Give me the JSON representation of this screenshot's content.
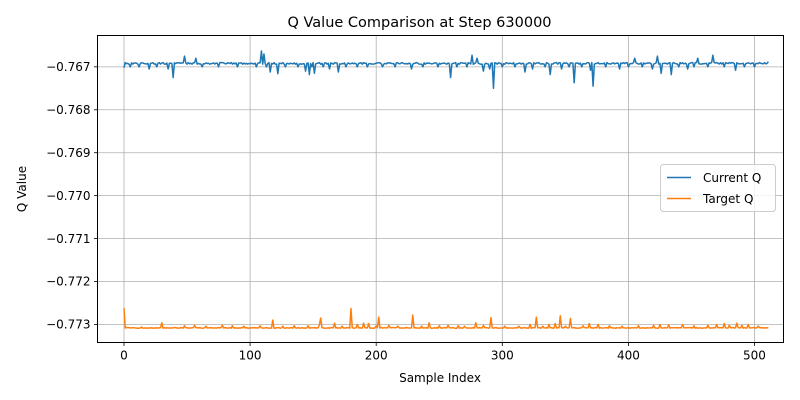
{
  "chart_data": {
    "type": "line",
    "title": "Q Value Comparison at Step 630000",
    "xlabel": "Sample Index",
    "ylabel": "Q Value",
    "xlim": [
      -21,
      523
    ],
    "ylim": [
      -0.77342,
      -0.76627
    ],
    "xticks": [
      0,
      100,
      200,
      300,
      400,
      500
    ],
    "yticks": [
      -0.767,
      -0.768,
      -0.769,
      -0.77,
      -0.771,
      -0.772,
      -0.773
    ],
    "ytick_labels": [
      "−0.767",
      "−0.768",
      "−0.769",
      "−0.770",
      "−0.771",
      "−0.772",
      "−0.773"
    ],
    "grid": true,
    "legend_position": "center-right",
    "n_points": 512,
    "series": [
      {
        "name": "Current Q",
        "color": "#1f77b4",
        "baseline": -0.76692,
        "noise": 2e-05,
        "spikes": [
          [
            0,
            -0.76702
          ],
          [
            1,
            -0.7669
          ],
          [
            5,
            -0.767
          ],
          [
            12,
            -0.767
          ],
          [
            20,
            -0.76705
          ],
          [
            26,
            -0.767
          ],
          [
            35,
            -0.76705
          ],
          [
            39,
            -0.76725
          ],
          [
            48,
            -0.76675
          ],
          [
            57,
            -0.7668
          ],
          [
            62,
            -0.767
          ],
          [
            75,
            -0.767
          ],
          [
            90,
            -0.767
          ],
          [
            105,
            -0.767
          ],
          [
            109,
            -0.76663
          ],
          [
            111,
            -0.7667
          ],
          [
            113,
            -0.767
          ],
          [
            116,
            -0.76712
          ],
          [
            122,
            -0.76716
          ],
          [
            128,
            -0.767
          ],
          [
            138,
            -0.767
          ],
          [
            144,
            -0.7671
          ],
          [
            147,
            -0.76718
          ],
          [
            149,
            -0.767
          ],
          [
            151,
            -0.76715
          ],
          [
            158,
            -0.767
          ],
          [
            163,
            -0.76705
          ],
          [
            170,
            -0.76712
          ],
          [
            176,
            -0.767
          ],
          [
            185,
            -0.767
          ],
          [
            193,
            -0.767
          ],
          [
            205,
            -0.767
          ],
          [
            215,
            -0.767
          ],
          [
            228,
            -0.76705
          ],
          [
            237,
            -0.767
          ],
          [
            249,
            -0.767
          ],
          [
            259,
            -0.76725
          ],
          [
            264,
            -0.767
          ],
          [
            272,
            -0.767
          ],
          [
            276,
            -0.76673
          ],
          [
            280,
            -0.7668
          ],
          [
            285,
            -0.7671
          ],
          [
            290,
            -0.76705
          ],
          [
            293,
            -0.7675
          ],
          [
            300,
            -0.767
          ],
          [
            310,
            -0.767
          ],
          [
            318,
            -0.76712
          ],
          [
            324,
            -0.76705
          ],
          [
            334,
            -0.767
          ],
          [
            338,
            -0.76718
          ],
          [
            347,
            -0.76705
          ],
          [
            353,
            -0.767
          ],
          [
            357,
            -0.76737
          ],
          [
            363,
            -0.767
          ],
          [
            370,
            -0.76708
          ],
          [
            372,
            -0.76745
          ],
          [
            382,
            -0.767
          ],
          [
            393,
            -0.76705
          ],
          [
            400,
            -0.767
          ],
          [
            405,
            -0.7668
          ],
          [
            411,
            -0.767
          ],
          [
            419,
            -0.76705
          ],
          [
            423,
            -0.76675
          ],
          [
            426,
            -0.76715
          ],
          [
            434,
            -0.76718
          ],
          [
            440,
            -0.767
          ],
          [
            447,
            -0.76705
          ],
          [
            452,
            -0.767
          ],
          [
            455,
            -0.7668
          ],
          [
            463,
            -0.767
          ],
          [
            467,
            -0.76673
          ],
          [
            470,
            -0.7669
          ],
          [
            476,
            -0.767
          ],
          [
            485,
            -0.76708
          ],
          [
            492,
            -0.767
          ],
          [
            500,
            -0.767
          ],
          [
            504,
            -0.7669
          ],
          [
            511,
            -0.76688
          ]
        ]
      },
      {
        "name": "Target Q",
        "color": "#ff7f0e",
        "baseline": -0.77308,
        "noise": 8e-06,
        "spikes": [
          [
            0,
            -0.77262
          ],
          [
            1,
            -0.77308
          ],
          [
            14,
            -0.77306
          ],
          [
            30,
            -0.77296
          ],
          [
            48,
            -0.77303
          ],
          [
            56,
            -0.77302
          ],
          [
            65,
            -0.77304
          ],
          [
            78,
            -0.77302
          ],
          [
            86,
            -0.77303
          ],
          [
            95,
            -0.77304
          ],
          [
            108,
            -0.77303
          ],
          [
            118,
            -0.7729
          ],
          [
            126,
            -0.77304
          ],
          [
            135,
            -0.77303
          ],
          [
            146,
            -0.77303
          ],
          [
            155,
            -0.773
          ],
          [
            156,
            -0.77285
          ],
          [
            167,
            -0.77297
          ],
          [
            173,
            -0.77304
          ],
          [
            180,
            -0.77263
          ],
          [
            185,
            -0.773
          ],
          [
            190,
            -0.77297
          ],
          [
            194,
            -0.77298
          ],
          [
            200,
            -0.77303
          ],
          [
            202,
            -0.77283
          ],
          [
            210,
            -0.77302
          ],
          [
            217,
            -0.77304
          ],
          [
            229,
            -0.77278
          ],
          [
            236,
            -0.77304
          ],
          [
            242,
            -0.77296
          ],
          [
            250,
            -0.77303
          ],
          [
            257,
            -0.77302
          ],
          [
            265,
            -0.77303
          ],
          [
            270,
            -0.77304
          ],
          [
            279,
            -0.77296
          ],
          [
            285,
            -0.77302
          ],
          [
            291,
            -0.77284
          ],
          [
            302,
            -0.77304
          ],
          [
            313,
            -0.77304
          ],
          [
            322,
            -0.773
          ],
          [
            327,
            -0.77283
          ],
          [
            332,
            -0.77304
          ],
          [
            337,
            -0.773
          ],
          [
            342,
            -0.77298
          ],
          [
            346,
            -0.7728
          ],
          [
            350,
            -0.77304
          ],
          [
            354,
            -0.77286
          ],
          [
            364,
            -0.77303
          ],
          [
            369,
            -0.77298
          ],
          [
            376,
            -0.773
          ],
          [
            385,
            -0.77303
          ],
          [
            395,
            -0.77304
          ],
          [
            408,
            -0.77303
          ],
          [
            420,
            -0.77302
          ],
          [
            425,
            -0.773
          ],
          [
            432,
            -0.77301
          ],
          [
            443,
            -0.773
          ],
          [
            452,
            -0.77303
          ],
          [
            463,
            -0.77302
          ],
          [
            470,
            -0.773
          ],
          [
            476,
            -0.77298
          ],
          [
            480,
            -0.77302
          ],
          [
            486,
            -0.77297
          ],
          [
            490,
            -0.77302
          ],
          [
            495,
            -0.773
          ],
          [
            503,
            -0.77304
          ],
          [
            511,
            -0.77308
          ]
        ]
      }
    ]
  }
}
